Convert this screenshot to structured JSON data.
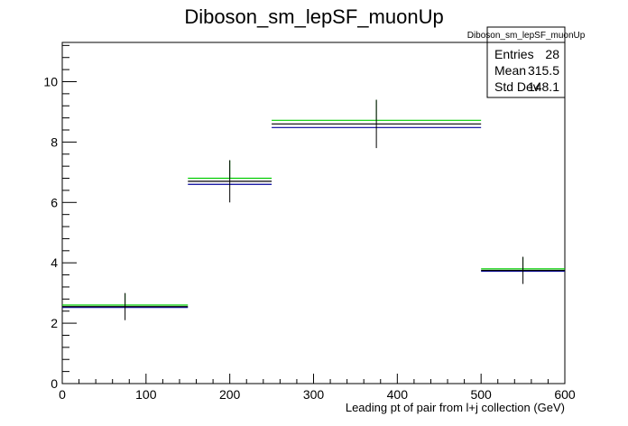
{
  "chart_data": {
    "type": "histogram",
    "title": "Diboson_sm_lepSF_muonUp",
    "xlabel": "Leading pt of pair from l+j collection (GeV)",
    "ylabel": "",
    "xlim": [
      0,
      600
    ],
    "ylim": [
      0,
      11.3
    ],
    "x_ticks": [
      0,
      100,
      200,
      300,
      400,
      500,
      600
    ],
    "y_ticks": [
      0,
      2,
      4,
      6,
      8,
      10
    ],
    "bins": [
      {
        "x_low": 0,
        "x_high": 150,
        "x_center": 75
      },
      {
        "x_low": 150,
        "x_high": 250,
        "x_center": 200
      },
      {
        "x_low": 250,
        "x_high": 500,
        "x_center": 375
      },
      {
        "x_low": 500,
        "x_high": 600,
        "x_center": 550
      }
    ],
    "series": [
      {
        "role": "nominal",
        "color": "#000000",
        "values": [
          2.55,
          6.7,
          8.6,
          3.75
        ],
        "errors": [
          0.45,
          0.7,
          0.8,
          0.45
        ]
      },
      {
        "role": "variation-up",
        "color": "#00cc00",
        "values": [
          2.6,
          6.8,
          8.72,
          3.8
        ]
      },
      {
        "role": "variation-down",
        "color": "#000099",
        "values": [
          2.52,
          6.6,
          8.48,
          3.72
        ]
      }
    ],
    "legend": "none",
    "grid": false
  },
  "stats_box": {
    "title": "Diboson_sm_lepSF_muonUp",
    "rows": [
      {
        "label": "Entries",
        "value": "28"
      },
      {
        "label": "Mean",
        "value": "315.5"
      },
      {
        "label": "Std Dev",
        "value": "148.1"
      }
    ]
  }
}
